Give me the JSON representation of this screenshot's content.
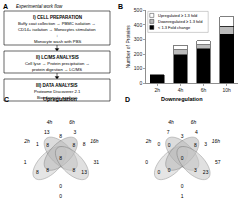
{
  "chart_data": [
    {
      "type": "flowchart",
      "title": "Experimental work flow",
      "annotations": [
        "A"
      ],
      "steps": [
        {
          "title": "I) CELL PREPARATION",
          "lines": [
            "Buffy coat collection → PBMC isolation →",
            "CD14+ isolation → Monocytes stimulation",
            "↓",
            "Monocyte wash with PBS"
          ]
        },
        {
          "title": "II) LC/MS ANALYSIS",
          "lines": [
            "Cell lyse → Protein precipitation →",
            "protein digestion → LC/MS"
          ]
        },
        {
          "title": "III) DATA ANALYSIS",
          "lines": [
            "Proteome Discoverer 2.1",
            "Bioinformatic analysis"
          ]
        }
      ]
    },
    {
      "type": "bar",
      "stacked": true,
      "annotations": [
        "B"
      ],
      "categories": [
        "2h",
        "4h",
        "6h",
        "10h"
      ],
      "series": [
        {
          "name": "< 1.3 Fold change",
          "color": "black",
          "values": [
            55,
            195,
            235,
            335
          ]
        },
        {
          "name": "Downregulated ≥ 1.3 fold",
          "color": "#bbbbbb",
          "values": [
            0,
            35,
            28,
            55
          ]
        },
        {
          "name": "Upregulated ≥ 1.3 fold",
          "color": "white",
          "values": [
            3,
            30,
            28,
            65
          ]
        }
      ],
      "ylabel": "Number of Proteins",
      "ylim": [
        0,
        500
      ],
      "yticks": [
        0,
        100,
        200,
        300,
        400,
        500
      ],
      "legend": "upper left",
      "grid": false
    },
    {
      "type": "venn",
      "title": "Upregulation",
      "annotations": [
        "C"
      ],
      "labels": [
        "2h",
        "4h",
        "6h",
        "16h"
      ],
      "regions": [
        {
          "sets": [
            "2h"
          ],
          "value": 1
        },
        {
          "sets": [
            "4h"
          ],
          "value": 13
        },
        {
          "sets": [
            "6h"
          ],
          "value": 3
        },
        {
          "sets": [
            "16h"
          ],
          "value": 31
        },
        {
          "sets": [
            "2h",
            "4h"
          ],
          "value": 1
        },
        {
          "sets": [
            "4h",
            "6h"
          ],
          "value": 8
        },
        {
          "sets": [
            "6h",
            "16h"
          ],
          "value": 8
        },
        {
          "sets": [
            "2h",
            "6h"
          ],
          "value": 8
        },
        {
          "sets": [
            "2h",
            "16h"
          ],
          "value": 0
        },
        {
          "sets": [
            "4h",
            "16h"
          ],
          "value": 13
        },
        {
          "sets": [
            "2h",
            "4h",
            "6h"
          ],
          "value": 8
        },
        {
          "sets": [
            "4h",
            "6h",
            "16h"
          ],
          "value": 8
        },
        {
          "sets": [
            "2h",
            "6h",
            "16h"
          ],
          "value": 8
        },
        {
          "sets": [
            "2h",
            "4h",
            "16h"
          ],
          "value": 8
        },
        {
          "sets": [
            "2h",
            "4h",
            "6h",
            "16h"
          ],
          "value": 8
        },
        {
          "sets": [],
          "value": 0
        }
      ]
    },
    {
      "type": "venn",
      "title": "Downregulation",
      "annotations": [
        "D"
      ],
      "labels": [
        "2h",
        "4h",
        "6h",
        "16h"
      ],
      "regions": [
        {
          "sets": [
            "2h"
          ],
          "value": 0
        },
        {
          "sets": [
            "4h"
          ],
          "value": 7
        },
        {
          "sets": [
            "6h"
          ],
          "value": 4
        },
        {
          "sets": [
            "16h"
          ],
          "value": 57
        },
        {
          "sets": [
            "2h",
            "4h"
          ],
          "value": 0
        },
        {
          "sets": [
            "4h",
            "6h"
          ],
          "value": 3
        },
        {
          "sets": [
            "6h",
            "16h"
          ],
          "value": 3
        },
        {
          "sets": [
            "2h",
            "6h"
          ],
          "value": 0
        },
        {
          "sets": [
            "2h",
            "16h"
          ],
          "value": 0
        },
        {
          "sets": [
            "4h",
            "16h"
          ],
          "value": 23
        },
        {
          "sets": [
            "2h",
            "4h",
            "6h"
          ],
          "value": 0
        },
        {
          "sets": [
            "4h",
            "6h",
            "16h"
          ],
          "value": 8
        },
        {
          "sets": [
            "2h",
            "6h",
            "16h"
          ],
          "value": 0
        },
        {
          "sets": [
            "2h",
            "4h",
            "16h"
          ],
          "value": 3
        },
        {
          "sets": [
            "2h",
            "4h",
            "6h",
            "16h"
          ],
          "value": 0
        },
        {
          "sets": [],
          "value": 1
        }
      ]
    }
  ]
}
